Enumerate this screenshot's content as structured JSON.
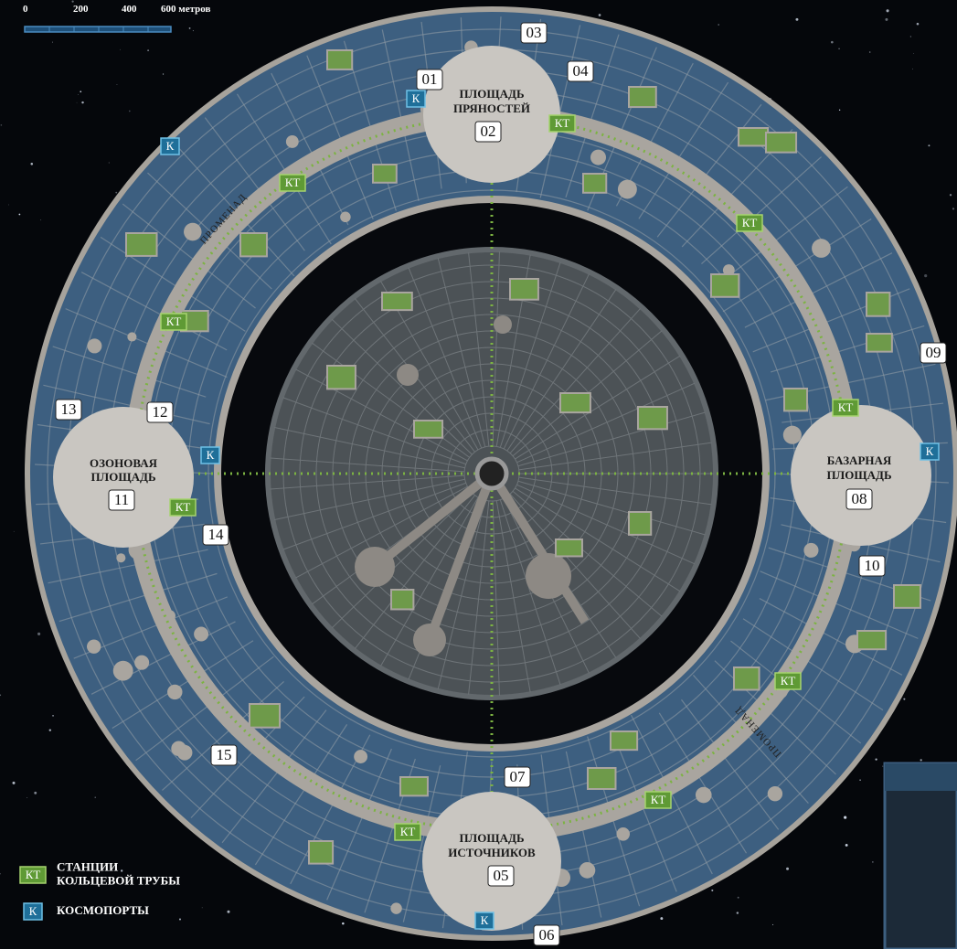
{
  "scale_bar": {
    "labels": [
      "0",
      "200",
      "400",
      "600 метров"
    ]
  },
  "plazas": [
    {
      "name": [
        "ПЛОЩАДЬ",
        "ПРЯНОСТЕЙ"
      ],
      "number": "02"
    },
    {
      "name": [
        "БАЗАРНАЯ",
        "ПЛОЩАДЬ"
      ],
      "number": "08"
    },
    {
      "name": [
        "ПЛОЩАДЬ",
        "ИСТОЧНИКОВ"
      ],
      "number": "05"
    },
    {
      "name": [
        "ОЗОНОВАЯ",
        "ПЛОЩАДЬ"
      ],
      "number": "11"
    }
  ],
  "markers": [
    "01",
    "03",
    "04",
    "06",
    "07",
    "09",
    "10",
    "12",
    "13",
    "14",
    "15"
  ],
  "promenade_label": "ПРОМЕНАД",
  "tube_station_symbol": "КТ",
  "spaceport_symbol": "К",
  "legend": [
    {
      "symbol": "КТ",
      "text": [
        "СТАНЦИИ",
        "КОЛЬЦЕВОЙ ТРУБЫ"
      ]
    },
    {
      "symbol": "К",
      "text": [
        "КОСМОПОРТЫ"
      ]
    }
  ]
}
